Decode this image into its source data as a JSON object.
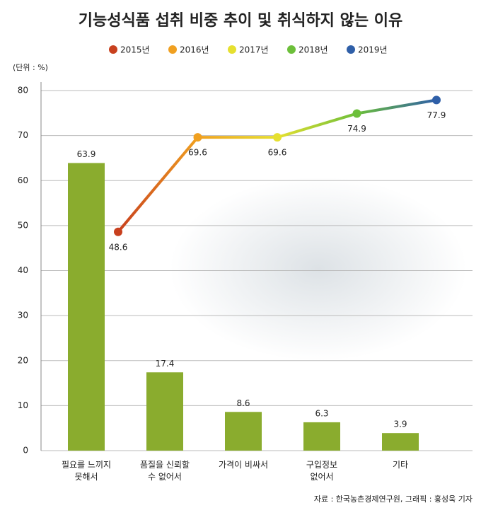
{
  "chart_data": [
    {
      "type": "bar",
      "title": "기능성식품 섭취 비중 추이 및 취식하지 않는 이유",
      "unit": "(단위 : %)",
      "source": "자료 : 한국농촌경제연구원, 그래픽 : 홍성욱 기자",
      "categories": [
        "필요를 느끼지\n못해서",
        "품질을 신뢰할\n수 없어서",
        "가격이 비싸서",
        "구입정보\n없어서",
        "기타"
      ],
      "values": [
        63.9,
        17.4,
        8.6,
        6.3,
        3.9
      ],
      "color": "#8aac2e",
      "ylim": [
        0,
        80
      ],
      "yticks": [
        0,
        10,
        20,
        30,
        40,
        50,
        60,
        70,
        80
      ],
      "grid": true
    },
    {
      "type": "line",
      "categories": [
        "2015년",
        "2016년",
        "2017년",
        "2018년",
        "2019년"
      ],
      "values": [
        48.6,
        69.6,
        69.6,
        74.9,
        77.9
      ],
      "colors": [
        "#c8401e",
        "#f0a020",
        "#e6e030",
        "#6cbf3a",
        "#2f5fa8"
      ],
      "ylim": [
        0,
        80
      ]
    }
  ]
}
